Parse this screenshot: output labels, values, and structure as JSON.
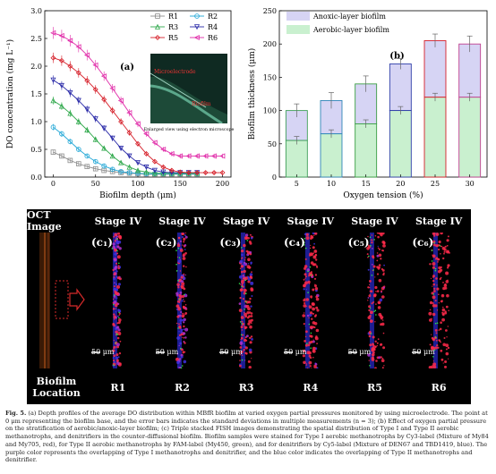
{
  "chart_data": [
    {
      "type": "line",
      "panel_label": "(a)",
      "xlabel": "Biofilm depth (μm)",
      "ylabel": "DO concentration (mg L⁻¹)",
      "xlim": [
        -10,
        210
      ],
      "ylim": [
        0,
        3.0
      ],
      "xticks": [
        0,
        50,
        100,
        150,
        200
      ],
      "yticks": [
        0.0,
        0.5,
        1.0,
        1.5,
        2.0,
        2.5,
        3.0
      ],
      "series": [
        {
          "name": "R1",
          "color": "#8c8c8c",
          "marker": "square",
          "x": [
            0,
            10,
            20,
            30,
            40,
            50,
            60,
            70,
            80,
            90,
            100,
            110,
            120,
            130,
            140,
            150,
            160,
            170
          ],
          "y": [
            0.45,
            0.38,
            0.3,
            0.24,
            0.19,
            0.15,
            0.12,
            0.1,
            0.08,
            0.07,
            0.06,
            0.05,
            0.05,
            0.05,
            0.05,
            0.05,
            0.05,
            0.05
          ]
        },
        {
          "name": "R2",
          "color": "#1fa6d6",
          "marker": "circle",
          "x": [
            0,
            10,
            20,
            30,
            40,
            50,
            60,
            70,
            80,
            90,
            100,
            110,
            120,
            130,
            140,
            150,
            160,
            170
          ],
          "y": [
            0.9,
            0.78,
            0.64,
            0.5,
            0.38,
            0.28,
            0.2,
            0.14,
            0.1,
            0.08,
            0.07,
            0.06,
            0.06,
            0.06,
            0.06,
            0.06,
            0.06,
            0.06
          ]
        },
        {
          "name": "R3",
          "color": "#2ea84a",
          "marker": "triangle-up",
          "x": [
            0,
            10,
            20,
            30,
            40,
            50,
            60,
            70,
            80,
            90,
            100,
            110,
            120,
            130,
            140,
            150,
            160,
            170
          ],
          "y": [
            1.38,
            1.28,
            1.15,
            1.0,
            0.85,
            0.68,
            0.52,
            0.38,
            0.26,
            0.18,
            0.12,
            0.09,
            0.07,
            0.07,
            0.07,
            0.07,
            0.07,
            0.07
          ]
        },
        {
          "name": "R4",
          "color": "#2a2aa8",
          "marker": "triangle-down",
          "x": [
            0,
            10,
            20,
            30,
            40,
            50,
            60,
            70,
            80,
            90,
            100,
            110,
            120,
            130,
            140,
            150,
            160,
            170
          ],
          "y": [
            1.75,
            1.65,
            1.52,
            1.38,
            1.22,
            1.05,
            0.88,
            0.7,
            0.52,
            0.38,
            0.26,
            0.18,
            0.12,
            0.09,
            0.08,
            0.08,
            0.08,
            0.08
          ]
        },
        {
          "name": "R5",
          "color": "#d6202a",
          "marker": "diamond",
          "x": [
            0,
            10,
            20,
            30,
            40,
            50,
            60,
            70,
            80,
            90,
            100,
            110,
            120,
            130,
            140,
            150,
            160,
            170,
            180,
            190,
            200
          ],
          "y": [
            2.15,
            2.1,
            2.0,
            1.88,
            1.74,
            1.58,
            1.4,
            1.2,
            1.0,
            0.8,
            0.6,
            0.42,
            0.28,
            0.18,
            0.12,
            0.09,
            0.08,
            0.08,
            0.08,
            0.08,
            0.08
          ]
        },
        {
          "name": "R6",
          "color": "#e02aa8",
          "marker": "triangle-left",
          "x": [
            0,
            10,
            20,
            30,
            40,
            50,
            60,
            70,
            80,
            90,
            100,
            110,
            120,
            130,
            140,
            150,
            160,
            170,
            180,
            190,
            200
          ],
          "y": [
            2.6,
            2.55,
            2.46,
            2.35,
            2.2,
            2.02,
            1.82,
            1.6,
            1.38,
            1.16,
            0.96,
            0.78,
            0.62,
            0.5,
            0.42,
            0.38,
            0.38,
            0.38,
            0.38,
            0.38,
            0.38
          ]
        }
      ],
      "inset": {
        "labels": [
          "Microelectrode",
          "Biofilm"
        ],
        "caption": "Enlarged view using electron microscope"
      }
    },
    {
      "type": "bar",
      "stacked": true,
      "panel_label": "(b)",
      "xlabel": "Oxygen tension (%)",
      "ylabel": "Biofilm thickness (μm)",
      "ylim": [
        0,
        250
      ],
      "yticks": [
        0,
        50,
        100,
        150,
        200,
        250
      ],
      "categories": [
        "5",
        "10",
        "15",
        "20",
        "25",
        "30"
      ],
      "series": [
        {
          "name": "Aerobic-layer biofilm",
          "color": "#c9f0cf",
          "values": [
            55,
            65,
            80,
            100,
            120,
            120
          ],
          "errors": [
            6,
            6,
            6,
            6,
            6,
            6
          ]
        },
        {
          "name": "Anoxic-layer biofilm",
          "color": "#d6d4f4",
          "values": [
            45,
            50,
            60,
            70,
            85,
            80
          ]
        }
      ],
      "totals": [
        100,
        115,
        140,
        170,
        205,
        200
      ],
      "total_errors": [
        10,
        12,
        12,
        8,
        10,
        12
      ],
      "edge_colors": [
        "#3e9e58",
        "#2f86b8",
        "#3a9e44",
        "#2f3fa8",
        "#d6202a",
        "#c04090"
      ]
    }
  ],
  "fish": {
    "headers": [
      "OCT Image",
      "Stage IV",
      "Stage IV",
      "Stage IV",
      "Stage IV",
      "Stage IV",
      "Stage IV"
    ],
    "panels": [
      {
        "label": "(c₁)",
        "scale": "50 μm",
        "reactor": "R1"
      },
      {
        "label": "(c₂)",
        "scale": "50 μm",
        "reactor": "R2"
      },
      {
        "label": "(c₃)",
        "scale": "50 μm",
        "reactor": "R3"
      },
      {
        "label": "(c₄)",
        "scale": "50 μm",
        "reactor": "R4"
      },
      {
        "label": "(c₅)",
        "scale": "50 μm",
        "reactor": "R5"
      },
      {
        "label": "(c₆)",
        "scale": "50 μm",
        "reactor": "R6"
      }
    ],
    "location_label": "Biofilm Location"
  },
  "caption": {
    "label": "Fig. 5.",
    "text": " (a) Depth profiles of the average DO distribution within MBfR biofilm at varied oxygen partial pressures monitored by using microelectrode. The point at 0 μm representing the biofilm base, and the error bars indicates the standard deviations in multiple measurements (n = 3); (b) Effect of oxygen partial pressure on the stratification of aerobic/anoxic-layer biofilm; (c) Triple stacked FISH images demonstrating the spatial distribution of Type I and Type II aerobic methanotrophs, and denitrifiers in the counter-diffusional biofilm. Biofilm samples were stained for Type I aerobic methanotrophs by Cy3-label (Mixture of My84 and My705, red), for Type II aerobic methanotrophs by FAM-label (My450, green), and for denitrifiers by Cy5-label (Mixture of DEN67 and TBD1419, blue). The purple color represents the overlapping of Type I methanotrophs and denitrifier, and the blue color indicates the overlapping of Type II methanotrophs and denitrifier."
  }
}
